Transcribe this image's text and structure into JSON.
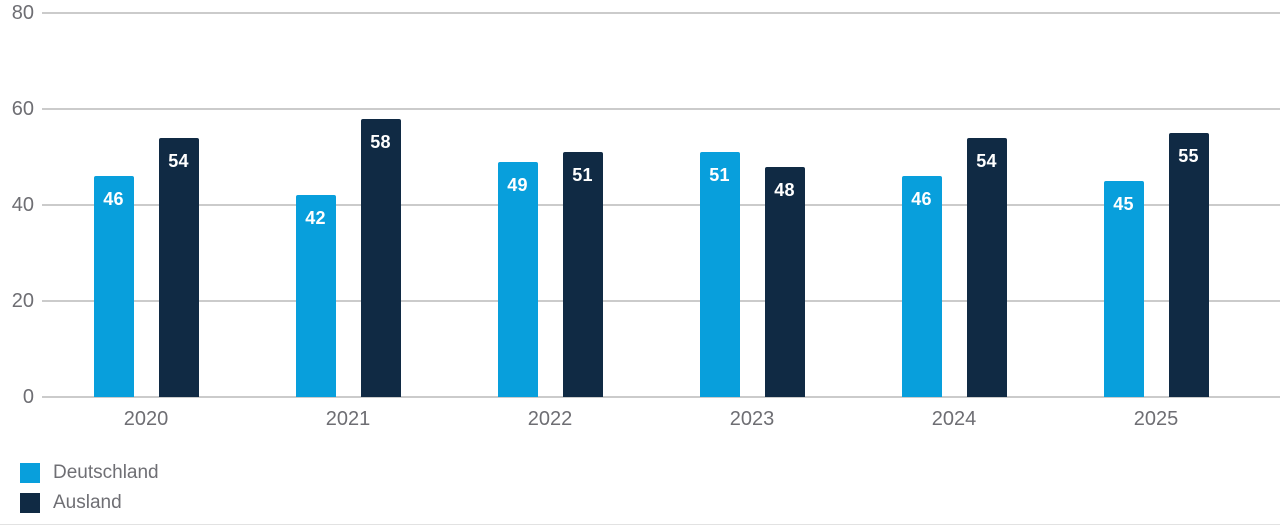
{
  "chart_data": {
    "type": "bar",
    "title": "",
    "xlabel": "",
    "ylabel": "",
    "categories": [
      "2020",
      "2021",
      "2022",
      "2023",
      "2024",
      "2025"
    ],
    "series": [
      {
        "name": "Deutschland",
        "color": "#089fdc",
        "values": [
          46,
          42,
          49,
          51,
          46,
          45
        ]
      },
      {
        "name": "Ausland",
        "color": "#102a44",
        "values": [
          54,
          58,
          51,
          48,
          54,
          55
        ]
      }
    ],
    "ylim": [
      0,
      80
    ],
    "yticks": [
      0,
      20,
      40,
      60,
      80
    ],
    "grid": true,
    "value_labels": "inside-top",
    "legend_position": "bottom-left"
  },
  "colors": {
    "background": "#ffffff",
    "grid": "#cbcbcb",
    "axis_label": "#6e6e73",
    "legend_label": "#6f6f74",
    "value_label": "#ffffff",
    "divider": "#e2e2e2"
  }
}
